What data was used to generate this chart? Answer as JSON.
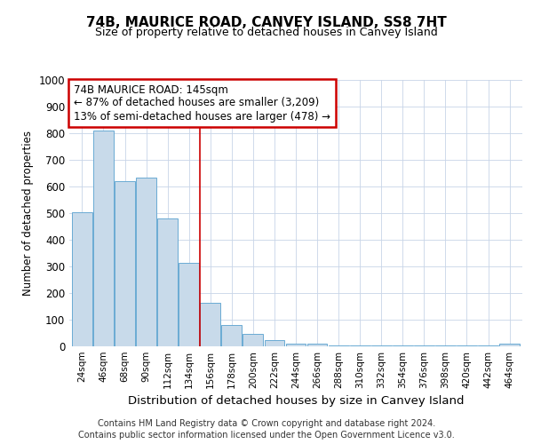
{
  "title": "74B, MAURICE ROAD, CANVEY ISLAND, SS8 7HT",
  "subtitle": "Size of property relative to detached houses in Canvey Island",
  "xlabel": "Distribution of detached houses by size in Canvey Island",
  "ylabel": "Number of detached properties",
  "categories": [
    "24sqm",
    "46sqm",
    "68sqm",
    "90sqm",
    "112sqm",
    "134sqm",
    "156sqm",
    "178sqm",
    "200sqm",
    "222sqm",
    "244sqm",
    "266sqm",
    "288sqm",
    "310sqm",
    "332sqm",
    "354sqm",
    "376sqm",
    "398sqm",
    "420sqm",
    "442sqm",
    "464sqm"
  ],
  "values": [
    505,
    810,
    620,
    635,
    480,
    315,
    162,
    80,
    47,
    22,
    10,
    10,
    5,
    5,
    3,
    3,
    2,
    2,
    2,
    2,
    10
  ],
  "bar_color": "#c8daea",
  "bar_edge_color": "#6aaad4",
  "reference_line_x": 5.5,
  "annotation_line1": "74B MAURICE ROAD: 145sqm",
  "annotation_line2": "← 87% of detached houses are smaller (3,209)",
  "annotation_line3": "13% of semi-detached houses are larger (478) →",
  "annotation_box_color": "#ffffff",
  "annotation_box_edge": "#cc0000",
  "ref_line_color": "#cc0000",
  "ylim": [
    0,
    1000
  ],
  "yticks": [
    0,
    100,
    200,
    300,
    400,
    500,
    600,
    700,
    800,
    900,
    1000
  ],
  "footer_line1": "Contains HM Land Registry data © Crown copyright and database right 2024.",
  "footer_line2": "Contains public sector information licensed under the Open Government Licence v3.0.",
  "background_color": "#ffffff",
  "plot_bg_color": "#ffffff",
  "grid_color": "#c8d4e8"
}
